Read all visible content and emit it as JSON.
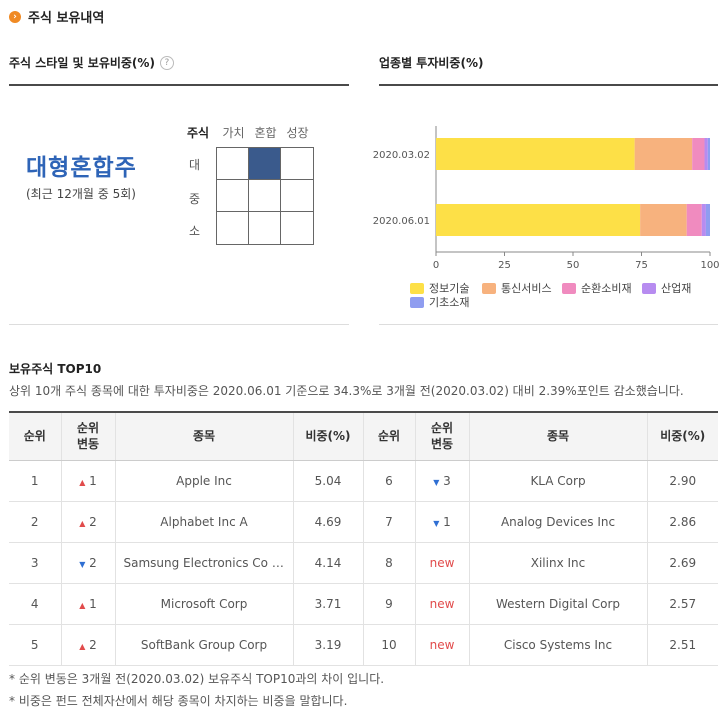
{
  "section_title": "주식 보유내역",
  "style_panel": {
    "heading": "주식 스타일 및 보유비중(%)",
    "style_name": "대형혼합주",
    "style_sub": "(최근 12개월 중 5회)",
    "col_header": "주식",
    "cols": [
      "가치",
      "혼합",
      "성장"
    ],
    "rows": [
      "대",
      "중",
      "소"
    ],
    "selected": {
      "row": 0,
      "col": 1
    }
  },
  "sector_panel": {
    "heading": "업종별 투자비중(%)"
  },
  "chart_data": {
    "type": "bar",
    "orientation": "horizontal",
    "stacked": true,
    "categories": [
      "2020.03.02",
      "2020.06.01"
    ],
    "series": [
      {
        "name": "정보기술",
        "color": "#fde047",
        "values": [
          72.5,
          74.5
        ]
      },
      {
        "name": "통신서비스",
        "color": "#f7b27e",
        "values": [
          21.0,
          17.0
        ]
      },
      {
        "name": "순환소비재",
        "color": "#f08bbf",
        "values": [
          4.5,
          5.5
        ]
      },
      {
        "name": "산업재",
        "color": "#b78cf0",
        "values": [
          1.2,
          1.5
        ]
      },
      {
        "name": "기초소재",
        "color": "#8f9df0",
        "values": [
          0.8,
          1.5
        ]
      }
    ],
    "xlim": [
      0,
      100
    ],
    "xticks": [
      0,
      25,
      50,
      75,
      100
    ],
    "legend_position": "bottom",
    "grid": false
  },
  "top10": {
    "title": "보유주식 TOP10",
    "desc": "상위 10개 주식 종목에 대한 투자비중은 2020.06.01 기준으로 34.3%로 3개월 전(2020.03.02) 대비 2.39%포인트 감소했습니다.",
    "headers": {
      "rank": "순위",
      "change_1": "순위",
      "change_2": "변동",
      "name": "종목",
      "weight": "비중(%)"
    },
    "left": [
      {
        "rank": "1",
        "dir": "up",
        "chg": "1",
        "name": "Apple Inc",
        "weight": "5.04"
      },
      {
        "rank": "2",
        "dir": "up",
        "chg": "2",
        "name": "Alphabet Inc A",
        "weight": "4.69"
      },
      {
        "rank": "3",
        "dir": "down",
        "chg": "2",
        "name": "Samsung Electronics Co Ltd Participating Preferred",
        "weight": "4.14"
      },
      {
        "rank": "4",
        "dir": "up",
        "chg": "1",
        "name": "Microsoft Corp",
        "weight": "3.71"
      },
      {
        "rank": "5",
        "dir": "up",
        "chg": "2",
        "name": "SoftBank Group Corp",
        "weight": "3.19"
      }
    ],
    "right": [
      {
        "rank": "6",
        "dir": "down",
        "chg": "3",
        "name": "KLA Corp",
        "weight": "2.90"
      },
      {
        "rank": "7",
        "dir": "down",
        "chg": "1",
        "name": "Analog Devices Inc",
        "weight": "2.86"
      },
      {
        "rank": "8",
        "dir": "new",
        "chg": "new",
        "name": "Xilinx Inc",
        "weight": "2.69"
      },
      {
        "rank": "9",
        "dir": "new",
        "chg": "new",
        "name": "Western Digital Corp",
        "weight": "2.57"
      },
      {
        "rank": "10",
        "dir": "new",
        "chg": "new",
        "name": "Cisco Systems Inc",
        "weight": "2.51"
      }
    ]
  },
  "notes": [
    "* 순위 변동은 3개월 전(2020.03.02) 보유주식 TOP10과의 차이 입니다.",
    "* 비중은 펀드 전체자산에서 해당 종목이 차지하는 비중을 말합니다."
  ]
}
